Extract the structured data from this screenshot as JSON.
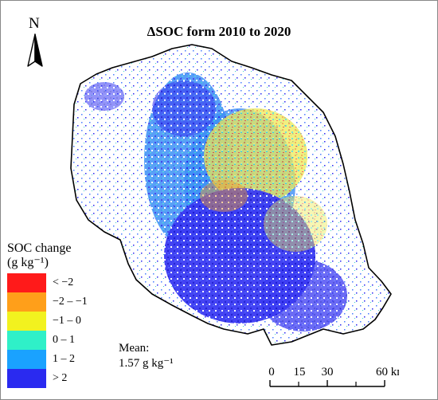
{
  "title": "ΔSOC form 2010 to 2020",
  "north_arrow": {
    "letter": "N",
    "icon": "north-arrow-icon"
  },
  "legend": {
    "title_line1": "SOC change",
    "title_line2": "(g kg⁻¹)",
    "items": [
      {
        "label": "< −2",
        "color": "#ff1a1a"
      },
      {
        "label": "−2 – −1",
        "color": "#ff9f1a"
      },
      {
        "label": "−1 – 0",
        "color": "#f2f21f"
      },
      {
        "label": "0 – 1",
        "color": "#2ff0c8"
      },
      {
        "label": "1 – 2",
        "color": "#1aa2ff"
      },
      {
        "label": "> 2",
        "color": "#2a2af0"
      }
    ]
  },
  "mean": {
    "label": "Mean:",
    "value": "1.57 g kg⁻¹"
  },
  "scale_bar": {
    "ticks": [
      "0",
      "15",
      "30",
      "60 km"
    ]
  }
}
